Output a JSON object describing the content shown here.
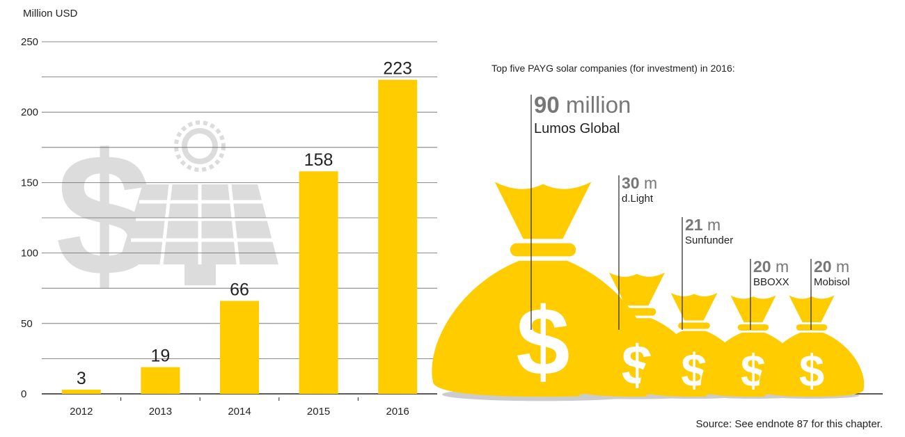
{
  "chart_data": [
    {
      "type": "bar",
      "y_axis_label": "Million USD",
      "categories": [
        "2012",
        "2013",
        "2014",
        "2015",
        "2016"
      ],
      "values": [
        3,
        19,
        66,
        158,
        223
      ],
      "color": "#ffcc00",
      "ylim": [
        0,
        250
      ],
      "yticks": [
        0,
        50,
        100,
        150,
        200,
        250
      ],
      "minor_yticks": [
        25,
        75,
        125,
        175,
        225
      ],
      "grid": true
    },
    {
      "type": "bags",
      "title": "Top five PAYG solar companies (for investment) in 2016:",
      "color": "#ffcc00",
      "companies": [
        {
          "name": "Lumos Global",
          "value": 90,
          "unit": "million"
        },
        {
          "name": "d.Light",
          "value": 30,
          "unit": "m"
        },
        {
          "name": "Sunfunder",
          "value": 21,
          "unit": "m"
        },
        {
          "name": "BBOXX",
          "value": 20,
          "unit": "m"
        },
        {
          "name": "Mobisol",
          "value": 20,
          "unit": "m"
        }
      ]
    }
  ],
  "source": "Source: See endnote 87 for this chapter."
}
